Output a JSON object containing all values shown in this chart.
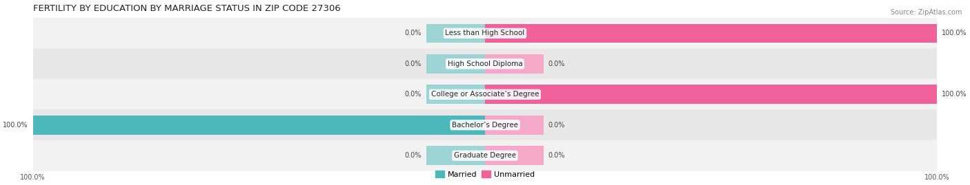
{
  "title": "FERTILITY BY EDUCATION BY MARRIAGE STATUS IN ZIP CODE 27306",
  "source": "Source: ZipAtlas.com",
  "categories": [
    "Less than High School",
    "High School Diploma",
    "College or Associate’s Degree",
    "Bachelor’s Degree",
    "Graduate Degree"
  ],
  "married": [
    0.0,
    0.0,
    0.0,
    100.0,
    0.0
  ],
  "unmarried": [
    100.0,
    0.0,
    100.0,
    0.0,
    0.0
  ],
  "married_color": "#4db8bb",
  "unmarried_color": "#f0609a",
  "married_light_color": "#9dd4d6",
  "unmarried_light_color": "#f5a8c8",
  "row_bg_colors": [
    "#f2f2f2",
    "#e8e8e8"
  ],
  "title_fontsize": 9.5,
  "source_fontsize": 7,
  "label_fontsize": 7.5,
  "value_fontsize": 7,
  "legend_fontsize": 8,
  "xlim": 100,
  "min_bar_pct": 13
}
